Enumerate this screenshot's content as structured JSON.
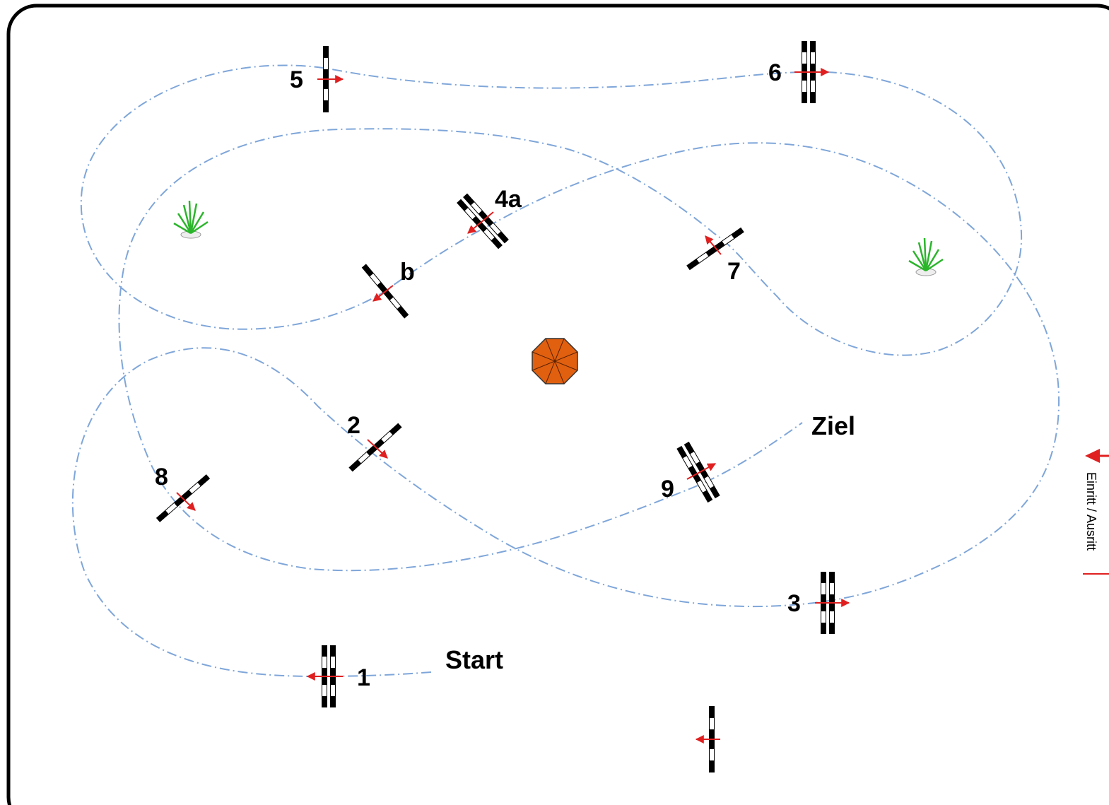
{
  "labels": {
    "start": "Start",
    "finish": "Ziel",
    "entry_exit": "Einritt / Ausritt",
    "f1": "1",
    "f2": "2",
    "f3": "3",
    "f4a": "4a",
    "f4b": "b",
    "f5": "5",
    "f6": "6",
    "f7": "7",
    "f8": "8",
    "f9": "9"
  },
  "colors": {
    "arena_border": "#000000",
    "route_line": "#7fa6d9",
    "direction_arrow": "#e02020",
    "umbrella": "#e06010",
    "plant": "#2bb52b",
    "entry_marker": "#e02020"
  },
  "icons": {
    "umbrella": "umbrella-icon",
    "plant": "plant-icon",
    "entry": "entry-arrow-icon"
  }
}
